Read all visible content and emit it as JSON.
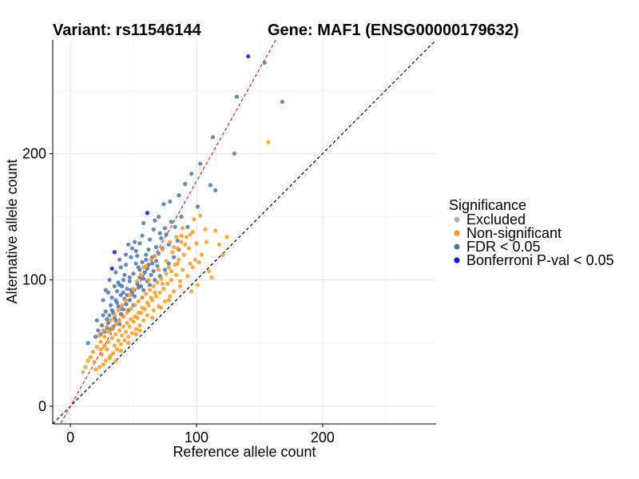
{
  "chart_data": {
    "type": "scatter",
    "title_left": "Variant: rs11546144",
    "title_right": "Gene: MAF1 (ENSG00000179632)",
    "xlabel": "Reference allele count",
    "ylabel": "Alternative allele count",
    "xlim": [
      -14,
      290
    ],
    "ylim": [
      -14,
      290
    ],
    "xticks": [
      0,
      100,
      200
    ],
    "yticks": [
      0,
      100,
      200
    ],
    "grid": true,
    "reference_lines": [
      {
        "name": "identity",
        "slope": 1,
        "intercept": 0,
        "color": "#000000",
        "style": "dashed"
      },
      {
        "name": "fitted",
        "slope": 1.78,
        "intercept": 0,
        "color": "#e41a1c",
        "style": "dashed"
      }
    ],
    "legend": {
      "title": "Significance",
      "placement": "right",
      "entries": [
        {
          "label": "Excluded",
          "color": "#b3b3b3"
        },
        {
          "label": "Non-significant",
          "color": "#ff9a1a"
        },
        {
          "label": "FDR < 0.05",
          "color": "#4a76ad"
        },
        {
          "label": "Bonferroni P-val < 0.05",
          "color": "#0a14f0"
        }
      ]
    },
    "series": [
      {
        "name": "Excluded",
        "color": "#b3b3b3",
        "points": [
          [
            10,
            27
          ]
        ]
      },
      {
        "name": "Bonferroni P-val < 0.05",
        "color": "#0a14f0",
        "points": [
          [
            141,
            277
          ],
          [
            61,
            153
          ],
          [
            35,
            122
          ],
          [
            33,
            109
          ]
        ]
      },
      {
        "name": "FDR < 0.05",
        "color": "#4a76ad",
        "points": [
          [
            154,
            272
          ],
          [
            168,
            241
          ],
          [
            132,
            245
          ],
          [
            113,
            213
          ],
          [
            130,
            200
          ],
          [
            103,
            192
          ],
          [
            96,
            184
          ],
          [
            111,
            175
          ],
          [
            91,
            176
          ],
          [
            86,
            167
          ],
          [
            115,
            171
          ],
          [
            101,
            158
          ],
          [
            79,
            162
          ],
          [
            74,
            160
          ],
          [
            58,
            145
          ],
          [
            67,
            147
          ],
          [
            75,
            141
          ],
          [
            83,
            142
          ],
          [
            88,
            150
          ],
          [
            93,
            142
          ],
          [
            71,
            137
          ],
          [
            63,
            132
          ],
          [
            55,
            129
          ],
          [
            46,
            128
          ],
          [
            52,
            123
          ],
          [
            48,
            118
          ],
          [
            60,
            120
          ],
          [
            68,
            126
          ],
          [
            44,
            112
          ],
          [
            40,
            110
          ],
          [
            57,
            114
          ],
          [
            50,
            105
          ],
          [
            42,
            100
          ],
          [
            38,
            98
          ],
          [
            35,
            95
          ],
          [
            30,
            90
          ],
          [
            47,
            102
          ],
          [
            55,
            108
          ],
          [
            62,
            112
          ],
          [
            65,
            118
          ],
          [
            70,
            121
          ],
          [
            73,
            125
          ],
          [
            78,
            128
          ],
          [
            66,
            107
          ],
          [
            58,
            101
          ],
          [
            53,
            97
          ],
          [
            45,
            93
          ],
          [
            40,
            88
          ],
          [
            36,
            84
          ],
          [
            32,
            80
          ],
          [
            43,
            85
          ],
          [
            49,
            90
          ],
          [
            56,
            95
          ],
          [
            61,
            99
          ],
          [
            28,
            75
          ],
          [
            26,
            72
          ],
          [
            33,
            76
          ],
          [
            38,
            79
          ],
          [
            44,
            81
          ],
          [
            51,
            87
          ],
          [
            35,
            70
          ],
          [
            40,
            73
          ],
          [
            46,
            76
          ],
          [
            30,
            66
          ],
          [
            36,
            68
          ],
          [
            42,
            71
          ],
          [
            50,
            80
          ],
          [
            57,
            86
          ],
          [
            29,
            62
          ],
          [
            34,
            63
          ],
          [
            39,
            65
          ],
          [
            24,
            57
          ],
          [
            14,
            50
          ],
          [
            20,
            55
          ],
          [
            27,
            59
          ],
          [
            32,
            61
          ],
          [
            85,
            131
          ],
          [
            60,
            116
          ],
          [
            52,
            113
          ],
          [
            59,
            106
          ],
          [
            64,
            104
          ],
          [
            47,
            99
          ],
          [
            41,
            95
          ],
          [
            37,
            91
          ],
          [
            43,
            104
          ],
          [
            54,
            110
          ],
          [
            72,
            133
          ],
          [
            68,
            115
          ],
          [
            48,
            92
          ],
          [
            45,
            88
          ],
          [
            33,
            86
          ],
          [
            39,
            96
          ],
          [
            31,
            72
          ],
          [
            25,
            64
          ],
          [
            22,
            60
          ],
          [
            53,
            119
          ],
          [
            62,
            124
          ],
          [
            76,
            136
          ],
          [
            80,
            146
          ],
          [
            70,
            150
          ],
          [
            66,
            140
          ],
          [
            57,
            135
          ],
          [
            51,
            130
          ],
          [
            49,
            125
          ],
          [
            44,
            120
          ],
          [
            39,
            116
          ],
          [
            36,
            106
          ],
          [
            31,
            100
          ],
          [
            28,
            92
          ],
          [
            26,
            84
          ],
          [
            21,
            68
          ],
          [
            58,
            92
          ],
          [
            63,
            96
          ],
          [
            67,
            100
          ],
          [
            71,
            103
          ],
          [
            75,
            108
          ],
          [
            78,
            113
          ],
          [
            82,
            118
          ],
          [
            86,
            124
          ],
          [
            69,
            111
          ],
          [
            54,
            94
          ],
          [
            47,
            84
          ],
          [
            41,
            77
          ],
          [
            34,
            74
          ],
          [
            29,
            69
          ],
          [
            37,
            82
          ],
          [
            42,
            90
          ],
          [
            55,
            102
          ],
          [
            61,
            109
          ],
          [
            65,
            113
          ]
        ]
      },
      {
        "name": "Non-significant",
        "color": "#ff9a1a",
        "points": [
          [
            157,
            209
          ],
          [
            103,
            151
          ],
          [
            98,
            148
          ],
          [
            107,
            140
          ],
          [
            115,
            139
          ],
          [
            97,
            138
          ],
          [
            92,
            134
          ],
          [
            88,
            130
          ],
          [
            85,
            125
          ],
          [
            81,
            122
          ],
          [
            94,
            125
          ],
          [
            90,
            120
          ],
          [
            86,
            116
          ],
          [
            83,
            112
          ],
          [
            78,
            110
          ],
          [
            76,
            105
          ],
          [
            72,
            101
          ],
          [
            69,
            98
          ],
          [
            66,
            95
          ],
          [
            63,
            92
          ],
          [
            60,
            89
          ],
          [
            57,
            86
          ],
          [
            54,
            83
          ],
          [
            51,
            80
          ],
          [
            48,
            77
          ],
          [
            45,
            74
          ],
          [
            42,
            71
          ],
          [
            39,
            68
          ],
          [
            36,
            65
          ],
          [
            33,
            62
          ],
          [
            30,
            59
          ],
          [
            27,
            55
          ],
          [
            24,
            51
          ],
          [
            21,
            47
          ],
          [
            18,
            43
          ],
          [
            16,
            39
          ],
          [
            14,
            36
          ],
          [
            12,
            31
          ],
          [
            19,
            35
          ],
          [
            25,
            41
          ],
          [
            29,
            45
          ],
          [
            35,
            48
          ],
          [
            38,
            52
          ],
          [
            41,
            56
          ],
          [
            44,
            59
          ],
          [
            47,
            63
          ],
          [
            50,
            67
          ],
          [
            53,
            70
          ],
          [
            56,
            74
          ],
          [
            59,
            77
          ],
          [
            62,
            80
          ],
          [
            65,
            84
          ],
          [
            68,
            87
          ],
          [
            71,
            90
          ],
          [
            74,
            93
          ],
          [
            77,
            97
          ],
          [
            80,
            100
          ],
          [
            84,
            104
          ],
          [
            89,
            108
          ],
          [
            95,
            113
          ],
          [
            99,
            116
          ],
          [
            104,
            120
          ],
          [
            93,
            103
          ],
          [
            87,
            95
          ],
          [
            82,
            91
          ],
          [
            79,
            87
          ],
          [
            75,
            83
          ],
          [
            70,
            79
          ],
          [
            66,
            76
          ],
          [
            61,
            72
          ],
          [
            58,
            68
          ],
          [
            55,
            64
          ],
          [
            52,
            61
          ],
          [
            49,
            58
          ],
          [
            46,
            55
          ],
          [
            43,
            52
          ],
          [
            40,
            49
          ],
          [
            37,
            45
          ],
          [
            34,
            42
          ],
          [
            31,
            38
          ],
          [
            28,
            36
          ],
          [
            26,
            33
          ],
          [
            23,
            31
          ],
          [
            20,
            29
          ],
          [
            96,
            91
          ],
          [
            101,
            96
          ],
          [
            110,
            107
          ],
          [
            112,
            102
          ],
          [
            121,
            120
          ],
          [
            124,
            134
          ],
          [
            118,
            128
          ],
          [
            108,
            130
          ],
          [
            100,
            129
          ],
          [
            95,
            136
          ],
          [
            89,
            141
          ],
          [
            84,
            134
          ],
          [
            79,
            130
          ],
          [
            73,
            124
          ],
          [
            67,
            119
          ],
          [
            64,
            116
          ],
          [
            60,
            111
          ],
          [
            56,
            104
          ],
          [
            53,
            99
          ],
          [
            50,
            93
          ],
          [
            47,
            88
          ],
          [
            44,
            84
          ],
          [
            41,
            80
          ],
          [
            38,
            76
          ],
          [
            35,
            72
          ],
          [
            32,
            68
          ],
          [
            29,
            63
          ],
          [
            26,
            60
          ],
          [
            23,
            56
          ],
          [
            58,
            110
          ],
          [
            62,
            100
          ],
          [
            70,
            108
          ],
          [
            76,
            115
          ],
          [
            82,
            126
          ],
          [
            88,
            135
          ],
          [
            91,
            128
          ],
          [
            85,
            113
          ],
          [
            80,
            107
          ],
          [
            73,
            97
          ],
          [
            67,
            90
          ],
          [
            64,
            86
          ],
          [
            61,
            82
          ],
          [
            57,
            78
          ],
          [
            54,
            74
          ],
          [
            51,
            71
          ],
          [
            48,
            69
          ],
          [
            45,
            66
          ],
          [
            42,
            63
          ],
          [
            39,
            60
          ],
          [
            36,
            57
          ],
          [
            33,
            54
          ],
          [
            30,
            51
          ],
          [
            27,
            48
          ],
          [
            24,
            45
          ],
          [
            40,
            44
          ],
          [
            46,
            50
          ],
          [
            52,
            57
          ],
          [
            36,
            36
          ],
          [
            32,
            40
          ],
          [
            55,
            60
          ],
          [
            65,
            70
          ],
          [
            72,
            78
          ],
          [
            78,
            84
          ],
          [
            87,
            99
          ],
          [
            97,
            110
          ],
          [
            102,
            114
          ]
        ]
      }
    ]
  }
}
